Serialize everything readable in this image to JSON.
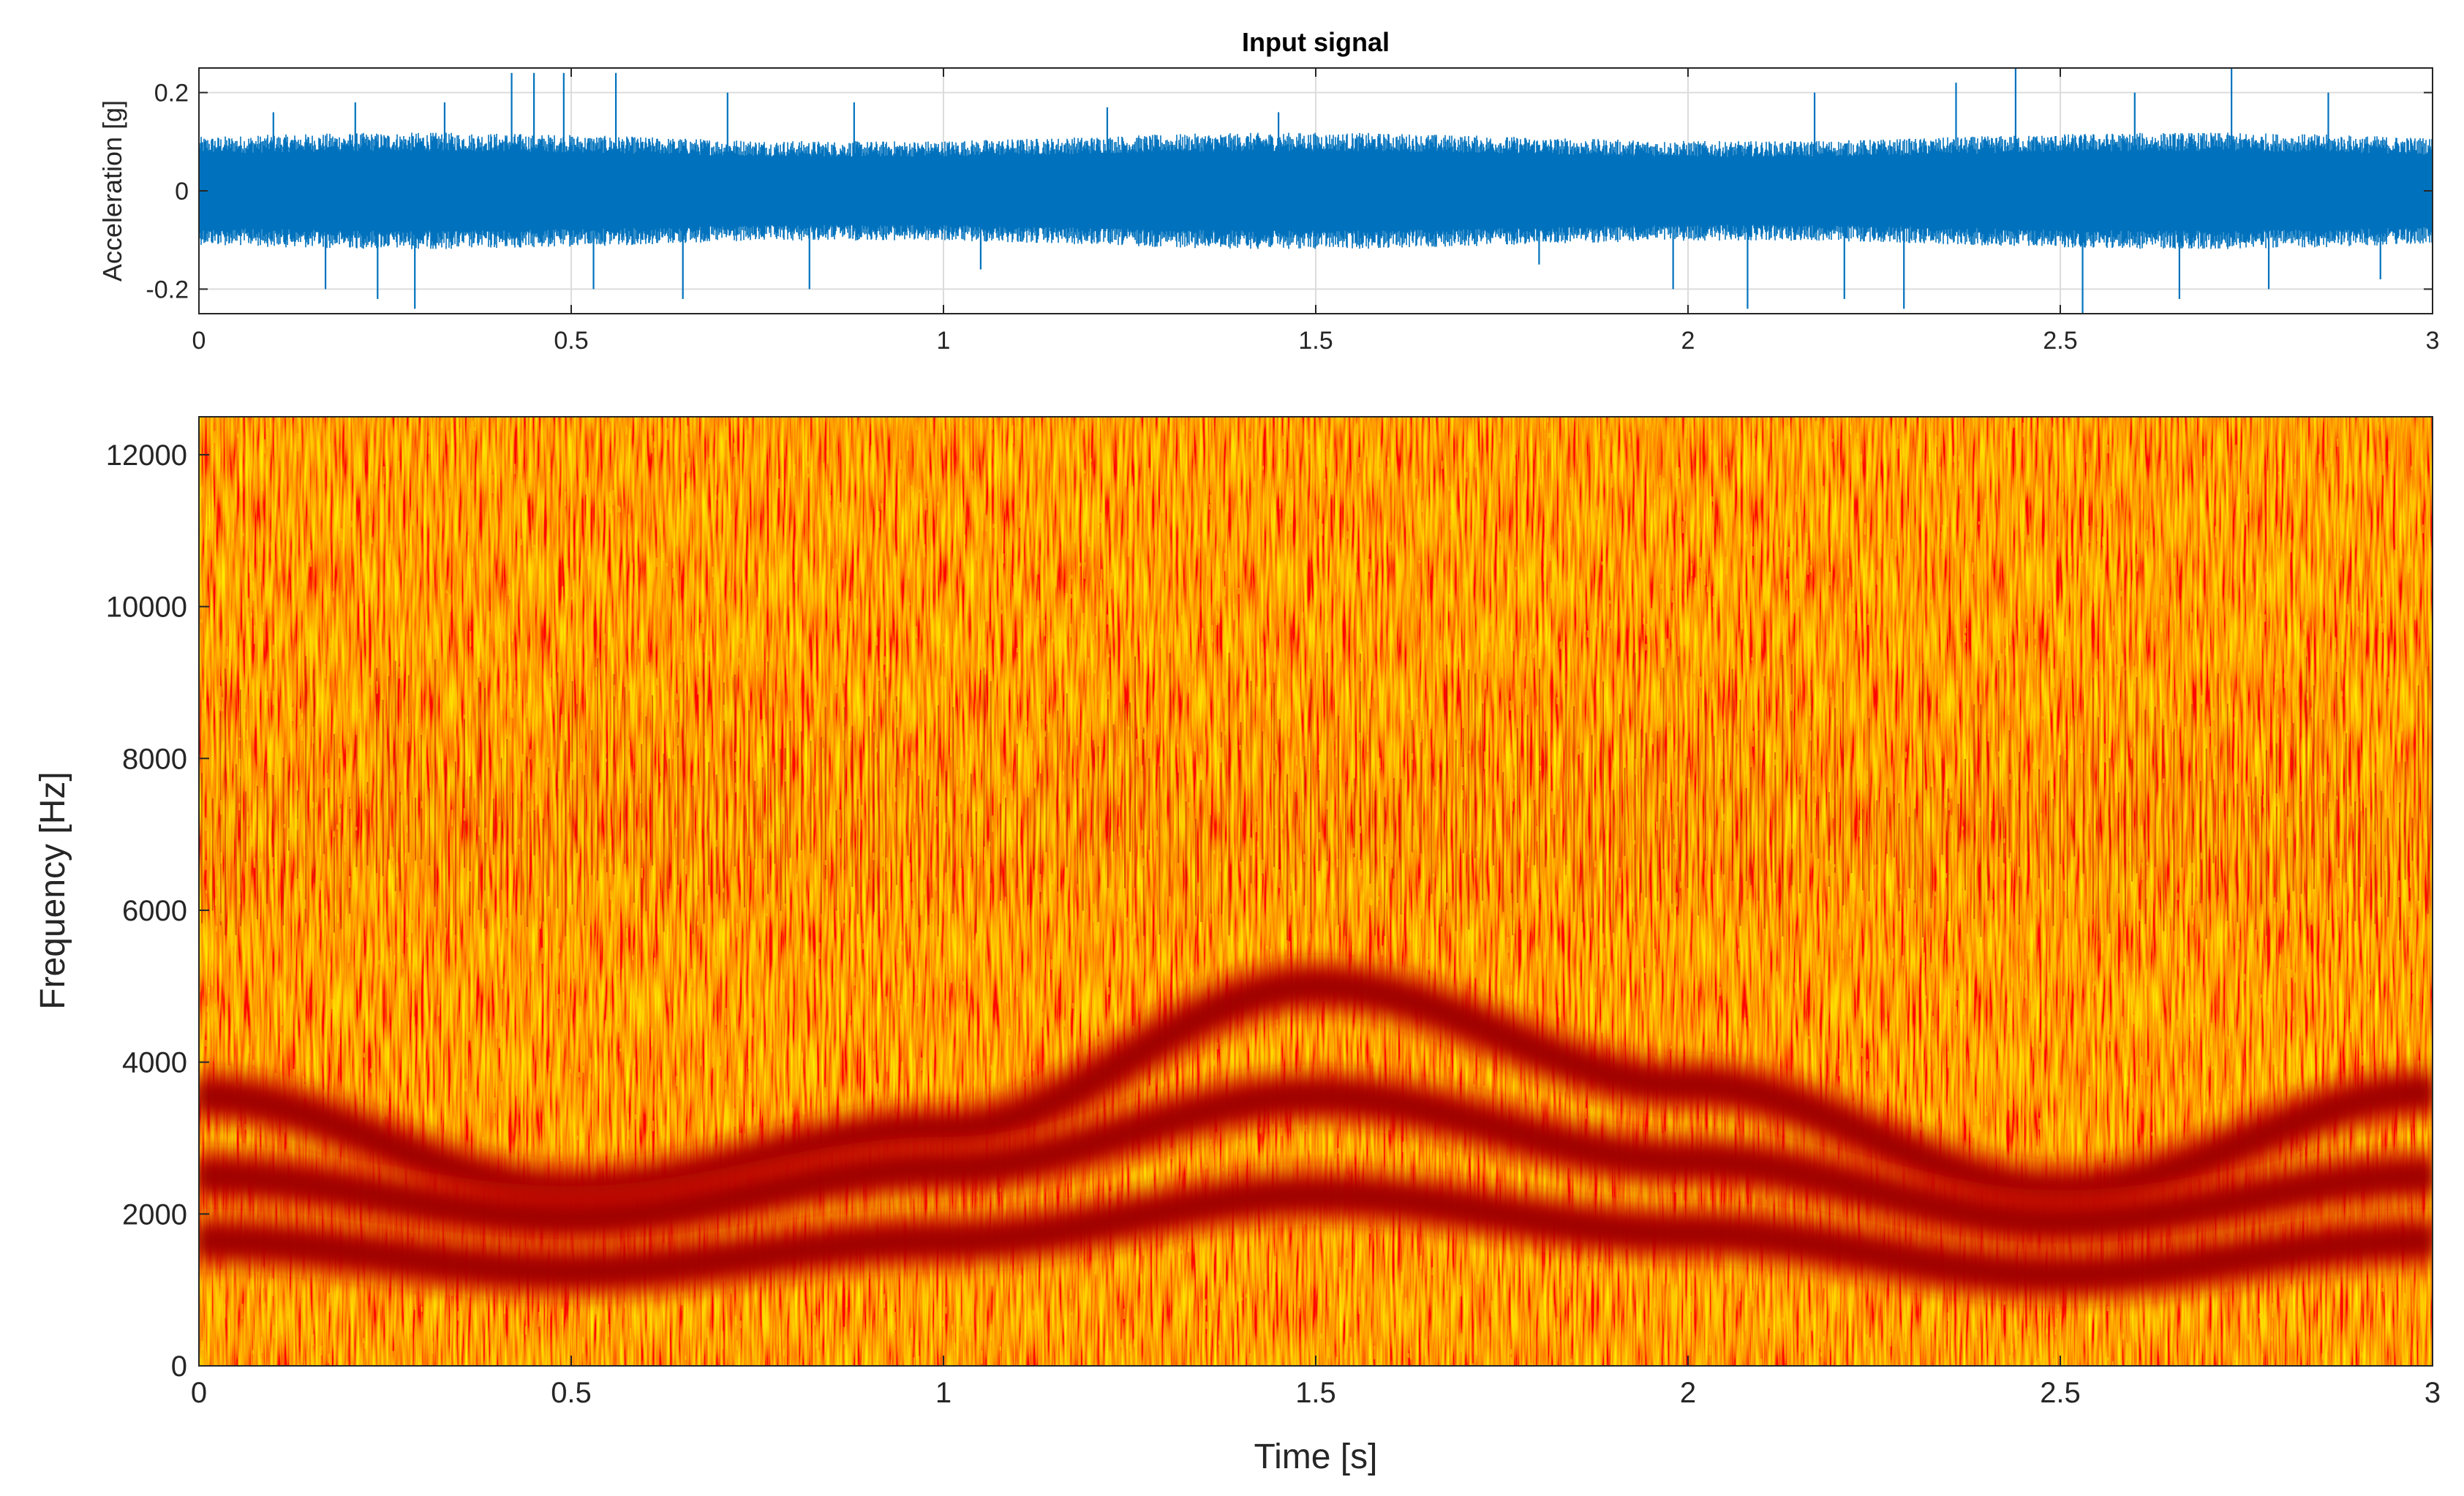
{
  "chart_data": [
    {
      "type": "line",
      "title": "Input signal",
      "xlabel": "",
      "ylabel": "Acceleration [g]",
      "xlim": [
        0,
        3
      ],
      "ylim": [
        -0.25,
        0.25
      ],
      "x_ticks": [
        "0",
        "0.5",
        "1",
        "1.5",
        "2",
        "2.5",
        "3"
      ],
      "y_ticks": [
        "-0.2",
        "0",
        "0.2"
      ],
      "x_tick_values": [
        0,
        0.5,
        1,
        1.5,
        2,
        2.5,
        3
      ],
      "y_tick_values": [
        -0.2,
        0,
        0.2
      ],
      "grid": true,
      "series": [
        {
          "color": "#0072bd",
          "noise_band": 0.1,
          "spikes": [
            {
              "x": 0.1,
              "y": 0.16
            },
            {
              "x": 0.17,
              "y": -0.2
            },
            {
              "x": 0.21,
              "y": 0.18
            },
            {
              "x": 0.24,
              "y": -0.22
            },
            {
              "x": 0.29,
              "y": -0.24
            },
            {
              "x": 0.33,
              "y": 0.18
            },
            {
              "x": 0.42,
              "y": 0.24
            },
            {
              "x": 0.45,
              "y": 0.24
            },
            {
              "x": 0.49,
              "y": 0.24
            },
            {
              "x": 0.53,
              "y": -0.2
            },
            {
              "x": 0.56,
              "y": 0.24
            },
            {
              "x": 0.65,
              "y": -0.22
            },
            {
              "x": 0.71,
              "y": 0.2
            },
            {
              "x": 0.82,
              "y": -0.2
            },
            {
              "x": 0.88,
              "y": 0.18
            },
            {
              "x": 1.05,
              "y": -0.16
            },
            {
              "x": 1.22,
              "y": 0.17
            },
            {
              "x": 1.45,
              "y": 0.16
            },
            {
              "x": 1.8,
              "y": -0.15
            },
            {
              "x": 1.98,
              "y": -0.2
            },
            {
              "x": 2.08,
              "y": -0.24
            },
            {
              "x": 2.17,
              "y": 0.2
            },
            {
              "x": 2.21,
              "y": -0.22
            },
            {
              "x": 2.29,
              "y": -0.24
            },
            {
              "x": 2.36,
              "y": 0.22
            },
            {
              "x": 2.44,
              "y": 0.25
            },
            {
              "x": 2.53,
              "y": -0.26
            },
            {
              "x": 2.6,
              "y": 0.2
            },
            {
              "x": 2.66,
              "y": -0.22
            },
            {
              "x": 2.73,
              "y": 0.25
            },
            {
              "x": 2.78,
              "y": -0.2
            },
            {
              "x": 2.86,
              "y": 0.2
            },
            {
              "x": 2.93,
              "y": -0.18
            }
          ]
        }
      ]
    },
    {
      "type": "heatmap",
      "title": "",
      "xlabel": "Time [s]",
      "ylabel": "Frequency [Hz]",
      "xlim": [
        0,
        3
      ],
      "ylim": [
        0,
        12500
      ],
      "x_ticks": [
        "0",
        "0.5",
        "1",
        "1.5",
        "2",
        "2.5",
        "3"
      ],
      "y_ticks": [
        "0",
        "2000",
        "4000",
        "6000",
        "8000",
        "10000",
        "12000"
      ],
      "x_tick_values": [
        0,
        0.5,
        1,
        1.5,
        2,
        2.5,
        3
      ],
      "y_tick_values": [
        0,
        2000,
        4000,
        6000,
        8000,
        10000,
        12000
      ],
      "colormap": [
        "#b00000",
        "#e63d00",
        "#f57a00",
        "#ffb000",
        "#ffd800"
      ],
      "background_color": "#f58a10",
      "band_color": "#b30000",
      "bands": [
        {
          "t": [
            0,
            0.5,
            1,
            1.5,
            2,
            2.5,
            3
          ],
          "f": [
            3550,
            2300,
            3100,
            5000,
            3700,
            2300,
            3600
          ]
        },
        {
          "t": [
            0,
            0.5,
            1,
            1.5,
            2,
            2.5,
            3
          ],
          "f": [
            2500,
            1950,
            2600,
            3550,
            2700,
            1900,
            2500
          ]
        },
        {
          "t": [
            0,
            0.5,
            1,
            1.5,
            2,
            2.5,
            3
          ],
          "f": [
            1650,
            1250,
            1650,
            2250,
            1750,
            1200,
            1650
          ]
        }
      ]
    }
  ]
}
